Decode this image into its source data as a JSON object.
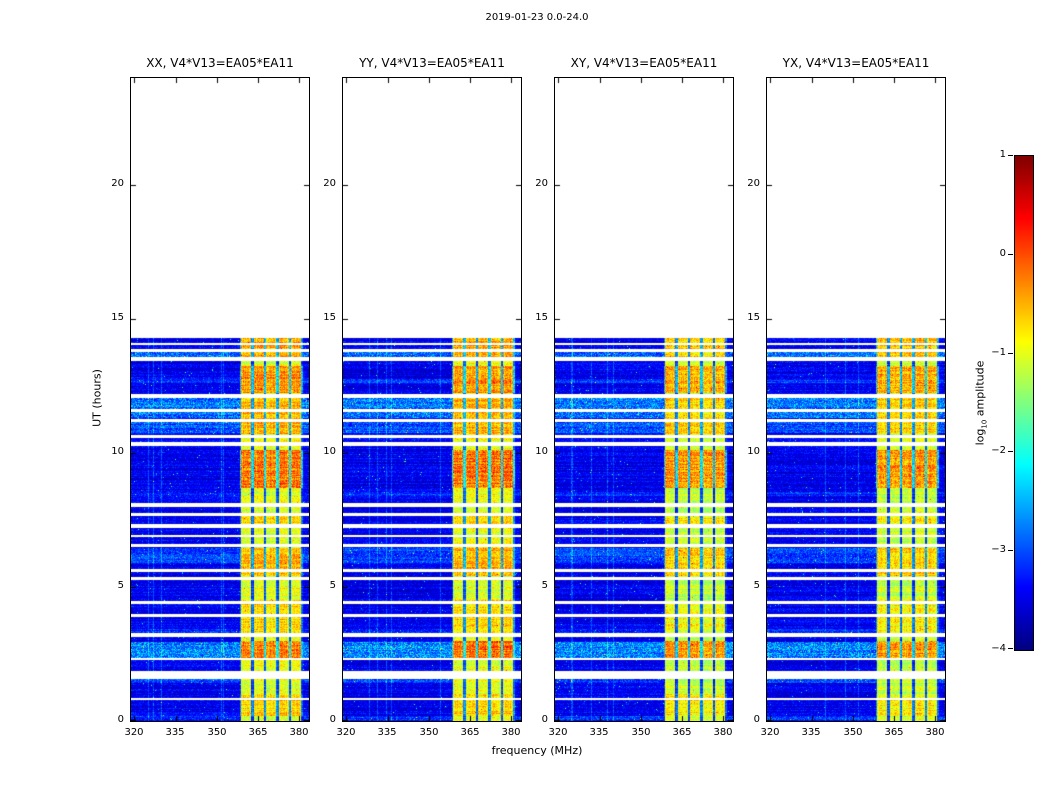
{
  "chart_data": {
    "type": "heatmap",
    "subtype": "dynamic-spectrum-waterfall",
    "title": "2019-01-23 0.0-24.0",
    "panels": [
      {
        "id": "XX",
        "title": "XX, V4*V13=EA05*EA11"
      },
      {
        "id": "YY",
        "title": "YY, V4*V13=EA05*EA11"
      },
      {
        "id": "XY",
        "title": "XY, V4*V13=EA05*EA11"
      },
      {
        "id": "YX",
        "title": "YX, V4*V13=EA05*EA11"
      }
    ],
    "x_axis": {
      "label": "frequency (MHz)",
      "tick_labels": [
        "320",
        "335",
        "350",
        "365",
        "380"
      ],
      "tick_values": [
        320,
        335,
        350,
        365,
        380
      ],
      "range": [
        318.75,
        383.75
      ]
    },
    "y_axis": {
      "label": "UT (hours)",
      "tick_labels": [
        "0",
        "5",
        "10",
        "15",
        "20"
      ],
      "tick_values": [
        0,
        5,
        10,
        15,
        20
      ],
      "range": [
        0,
        24
      ]
    },
    "colorbar": {
      "label_prefix": "log",
      "label_sub": "10",
      "label_suffix": " amplitude",
      "tick_labels": [
        "1",
        "0",
        "−1",
        "−2",
        "−3",
        "−4"
      ],
      "tick_values": [
        1,
        0,
        -1,
        -2,
        -3,
        -4
      ],
      "range": [
        -4,
        1
      ],
      "colormap": "jet"
    },
    "data": {
      "time_max": 14.28,
      "background_level": -3.6,
      "band": {
        "freq_range": [
          358.5,
          381.4
        ],
        "level": -1.05,
        "channel_width": 4.58,
        "blobs": [
          [
            0.2,
            1.0,
            0.35
          ],
          [
            2.3,
            3.0,
            0.8
          ],
          [
            3.3,
            4.5,
            0.3
          ],
          [
            5.4,
            6.45,
            0.5
          ],
          [
            7.35,
            7.65,
            0.35
          ],
          [
            8.7,
            10.1,
            0.85
          ],
          [
            10.7,
            12.05,
            0.5
          ],
          [
            12.25,
            13.25,
            0.7
          ],
          [
            13.45,
            14.28,
            0.55
          ]
        ]
      },
      "gaps": [
        [
          0.79,
          0.86
        ],
        [
          1.55,
          1.85
        ],
        [
          2.28,
          2.34
        ],
        [
          3.15,
          3.27
        ],
        [
          3.88,
          3.99
        ],
        [
          4.36,
          4.47
        ],
        [
          5.28,
          5.38
        ],
        [
          5.57,
          5.67
        ],
        [
          6.48,
          6.6
        ],
        [
          6.86,
          6.96
        ],
        [
          7.22,
          7.34
        ],
        [
          7.65,
          7.77
        ],
        [
          8.0,
          8.12
        ],
        [
          10.27,
          10.4
        ],
        [
          10.57,
          10.69
        ],
        [
          11.17,
          11.29
        ],
        [
          11.52,
          11.63
        ],
        [
          12.07,
          12.2
        ],
        [
          13.45,
          13.57
        ],
        [
          13.78,
          13.9
        ],
        [
          14.02,
          14.12
        ]
      ],
      "bright_rows": [
        [
          0.02,
          0.2,
          0.45
        ],
        [
          1.4,
          1.55,
          0.5
        ],
        [
          2.34,
          2.95,
          0.95
        ],
        [
          3.3,
          3.42,
          0.4
        ],
        [
          5.9,
          6.45,
          0.5
        ],
        [
          8.4,
          8.55,
          0.35
        ],
        [
          10.75,
          11.15,
          0.6
        ],
        [
          11.3,
          12.05,
          0.85
        ],
        [
          12.62,
          12.75,
          0.4
        ],
        [
          13.57,
          13.77,
          0.75
        ]
      ],
      "panel_band_offsets": [
        0,
        0.05,
        -0.1,
        -0.1
      ],
      "seeds": [
        3,
        7,
        11,
        17
      ]
    }
  }
}
